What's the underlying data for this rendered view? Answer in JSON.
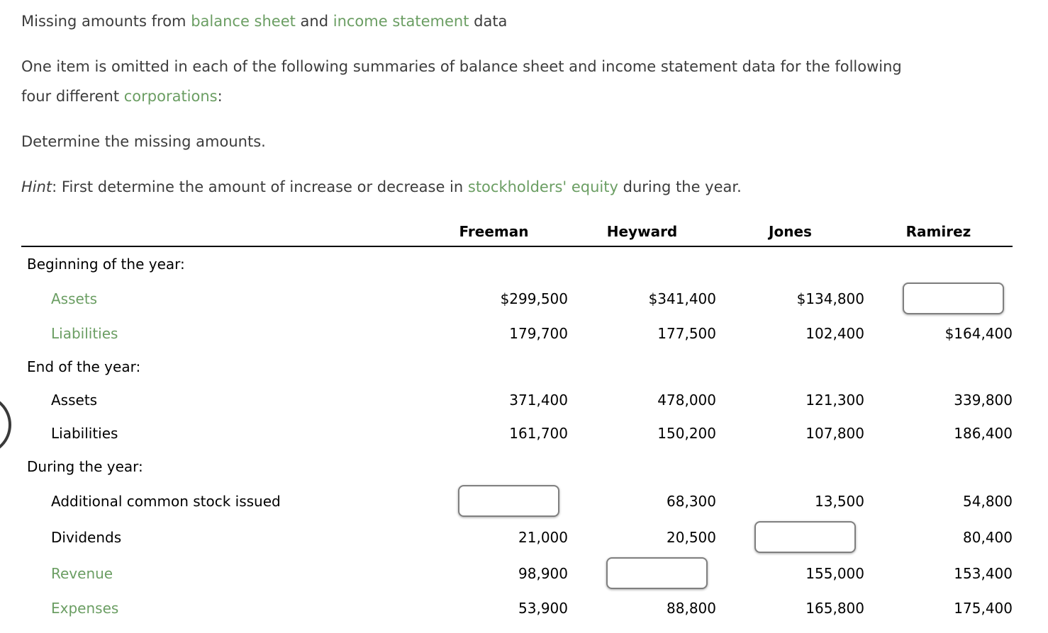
{
  "colors": {
    "link_green": "#6b9e63",
    "body_text": "#3c3c3c",
    "table_text": "#000000",
    "input_border": "#7f7f7f"
  },
  "intro": {
    "title_parts": [
      {
        "text": "Missing amounts from ",
        "style": "normal"
      },
      {
        "text": "balance sheet",
        "style": "link"
      },
      {
        "text": " and ",
        "style": "normal"
      },
      {
        "text": "income statement",
        "style": "link"
      },
      {
        "text": " data",
        "style": "normal"
      }
    ],
    "paragraph1_parts": [
      {
        "text": "One item is omitted in each of the following summaries of balance sheet and income statement data for the following",
        "style": "normal"
      },
      {
        "text": "four different ",
        "style": "normal"
      },
      {
        "text": "corporations",
        "style": "link"
      },
      {
        "text": ":",
        "style": "normal"
      }
    ],
    "paragraph2": "Determine the missing amounts.",
    "hint_parts": [
      {
        "text": "Hint",
        "style": "italic"
      },
      {
        "text": ": First determine the amount of increase or decrease in ",
        "style": "normal"
      },
      {
        "text": "stockholders' equity",
        "style": "link"
      },
      {
        "text": " during the year.",
        "style": "normal"
      }
    ]
  },
  "table": {
    "columns": [
      "Freeman",
      "Heyward",
      "Jones",
      "Ramirez"
    ],
    "rows": [
      {
        "type": "section",
        "label": "Beginning of the year:"
      },
      {
        "type": "item",
        "label": "Assets",
        "label_link": true,
        "cells": [
          {
            "type": "text",
            "value": "$299,500"
          },
          {
            "type": "text",
            "value": "$341,400"
          },
          {
            "type": "text",
            "value": "$134,800"
          },
          {
            "type": "input",
            "value": ""
          }
        ]
      },
      {
        "type": "item",
        "label": "Liabilities",
        "label_link": true,
        "cells": [
          {
            "type": "text",
            "value": "179,700"
          },
          {
            "type": "text",
            "value": "177,500"
          },
          {
            "type": "text",
            "value": "102,400"
          },
          {
            "type": "text",
            "value": "$164,400"
          }
        ]
      },
      {
        "type": "section",
        "label": "End of the year:"
      },
      {
        "type": "item",
        "label": "Assets",
        "label_link": false,
        "cells": [
          {
            "type": "text",
            "value": "371,400"
          },
          {
            "type": "text",
            "value": "478,000"
          },
          {
            "type": "text",
            "value": "121,300"
          },
          {
            "type": "text",
            "value": "339,800"
          }
        ]
      },
      {
        "type": "item",
        "label": "Liabilities",
        "label_link": false,
        "cells": [
          {
            "type": "text",
            "value": "161,700"
          },
          {
            "type": "text",
            "value": "150,200"
          },
          {
            "type": "text",
            "value": "107,800"
          },
          {
            "type": "text",
            "value": "186,400"
          }
        ]
      },
      {
        "type": "section",
        "label": "During the year:"
      },
      {
        "type": "item",
        "label": "Additional common stock issued",
        "label_link": false,
        "cells": [
          {
            "type": "input",
            "value": ""
          },
          {
            "type": "text",
            "value": "68,300"
          },
          {
            "type": "text",
            "value": "13,500"
          },
          {
            "type": "text",
            "value": "54,800"
          }
        ]
      },
      {
        "type": "item",
        "label": "Dividends",
        "label_link": false,
        "cells": [
          {
            "type": "text",
            "value": "21,000"
          },
          {
            "type": "text",
            "value": "20,500"
          },
          {
            "type": "input",
            "value": ""
          },
          {
            "type": "text",
            "value": "80,400"
          }
        ]
      },
      {
        "type": "item",
        "label": "Revenue",
        "label_link": true,
        "cells": [
          {
            "type": "text",
            "value": "98,900"
          },
          {
            "type": "input",
            "value": ""
          },
          {
            "type": "text",
            "value": "155,000"
          },
          {
            "type": "text",
            "value": "153,400"
          }
        ]
      },
      {
        "type": "item",
        "label": "Expenses",
        "label_link": true,
        "cells": [
          {
            "type": "text",
            "value": "53,900"
          },
          {
            "type": "text",
            "value": "88,800"
          },
          {
            "type": "text",
            "value": "165,800"
          },
          {
            "type": "text",
            "value": "175,400"
          }
        ]
      }
    ]
  }
}
